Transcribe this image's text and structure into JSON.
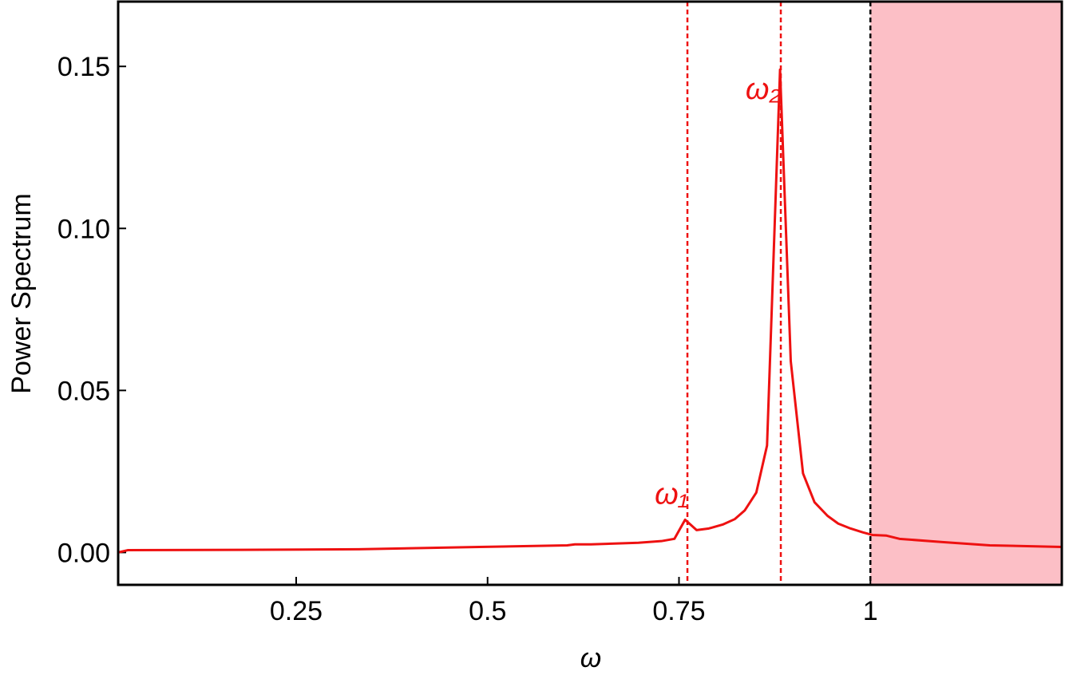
{
  "chart_data": {
    "type": "line",
    "x_label": "ω",
    "y_label": "Power Spectrum",
    "x": [
      0.0175,
      0.03,
      0.176,
      0.332,
      0.489,
      0.604,
      0.614,
      0.635,
      0.697,
      0.727,
      0.744,
      0.758,
      0.773,
      0.789,
      0.807,
      0.823,
      0.836,
      0.851,
      0.865,
      0.882,
      0.896,
      0.912,
      0.927,
      0.944,
      0.958,
      0.974,
      0.99,
      1.0025,
      1.021,
      1.038,
      1.094,
      1.156,
      1.25
    ],
    "series": [
      {
        "color": "#ee1111",
        "values": [
          0.0,
          0.0007,
          0.0008,
          0.001,
          0.0017,
          0.0022,
          0.0025,
          0.0025,
          0.003,
          0.0035,
          0.0042,
          0.0101,
          0.0069,
          0.0074,
          0.0086,
          0.0103,
          0.013,
          0.0185,
          0.033,
          0.149,
          0.059,
          0.0244,
          0.0155,
          0.0113,
          0.0089,
          0.0074,
          0.0062,
          0.0054,
          0.0052,
          0.0042,
          0.0032,
          0.0022,
          0.0017
        ]
      }
    ],
    "xlim": [
      0.0175,
      1.25
    ],
    "ylim": [
      -0.01,
      0.17
    ],
    "xticks": [
      0.25,
      0.5,
      0.75,
      1
    ],
    "yticks": [
      {
        "value": 0,
        "label": "0.00"
      },
      {
        "value": 0.05,
        "label": "0.05"
      },
      {
        "value": 0.1,
        "label": "0.10"
      },
      {
        "value": 0.15,
        "label": "0.15"
      }
    ],
    "vlines": [
      {
        "x": 0.761,
        "color": "#ee1111"
      },
      {
        "x": 0.883,
        "color": "#ee1111"
      },
      {
        "x": 1,
        "color": "#000000"
      }
    ],
    "shade": {
      "from": 1,
      "to": 1.25,
      "color": "#fcbfc6"
    },
    "annotations": [
      {
        "text": "ω₁",
        "x": 0.74,
        "y": 0.015,
        "color": "#ee1111"
      },
      {
        "text": "ω₂",
        "x": 0.86,
        "y": 0.14,
        "color": "#ee1111"
      }
    ]
  }
}
